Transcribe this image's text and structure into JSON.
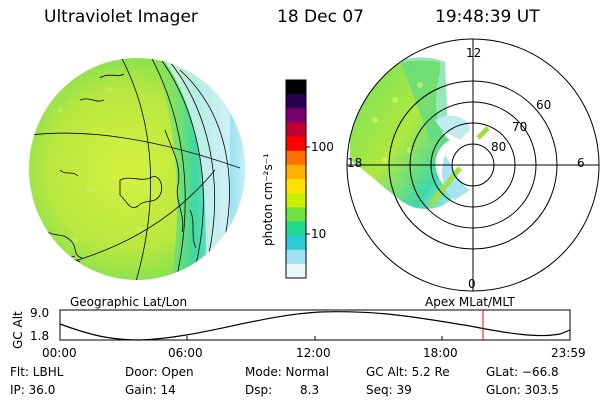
{
  "header": {
    "instrument": "Ultraviolet Imager",
    "date": "18 Dec 07",
    "time": "19:48:39 UT"
  },
  "colorbar": {
    "unit_label": "photon cm⁻²s⁻¹",
    "ticks": [
      "100",
      "10"
    ],
    "colors": [
      "#000000",
      "#2b0050",
      "#7a0070",
      "#c00030",
      "#ff0000",
      "#ff7000",
      "#ffb000",
      "#ffe000",
      "#c8f000",
      "#70e040",
      "#20d890",
      "#30c8d8",
      "#a0e0f0",
      "#e8f8f8"
    ]
  },
  "geo_map": {
    "label": "Geographic Lat/Lon"
  },
  "polar_plot": {
    "label": "Apex MLat/MLT",
    "mlt_labels": [
      "12",
      "18",
      "6",
      "0"
    ],
    "lat_labels": [
      "60",
      "70",
      "80"
    ]
  },
  "orbit_plot": {
    "ylabel": "GC Alt",
    "ytick_labels": [
      "9.0",
      "1.8"
    ],
    "xtick_labels": [
      "00:00",
      "06:00",
      "12:00",
      "18:00",
      "23:59"
    ],
    "current_marker_color": "#ff0000"
  },
  "info": {
    "flt": "Flt: LBHL",
    "ip": "IP: 36.0",
    "door": "Door: Open",
    "gain": "Gain: 14",
    "mode": "Mode: Normal",
    "dsp_label": "Dsp:",
    "dsp_value": "8.3",
    "gc_alt": "GC Alt: 5.2 Re",
    "seq": "Seq: 39",
    "glat": "GLat: −66.8",
    "glon": "GLon: 303.5"
  }
}
